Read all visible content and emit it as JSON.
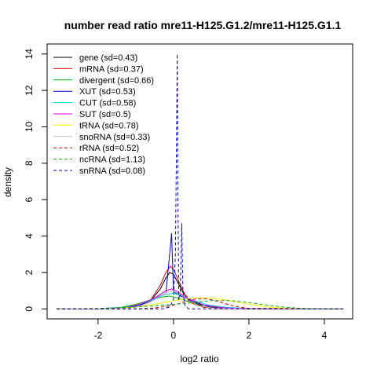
{
  "chart_data": {
    "type": "line",
    "title": "number read ratio mre11-H125.G1.2/mre11-H125.G1.1",
    "xlabel": "log2 ratio",
    "ylabel": "density",
    "xlim": [
      -3.2,
      4.6
    ],
    "ylim": [
      0,
      14
    ],
    "x_ticks": [
      -2,
      0,
      2,
      4
    ],
    "y_ticks": [
      0,
      2,
      4,
      6,
      8,
      10,
      12,
      14
    ],
    "grid": false,
    "legend_position": "top-left",
    "series": [
      {
        "name": "gene (sd=0.43)",
        "color": "#000000",
        "dash": "solid",
        "points": [
          [
            -3.1,
            0
          ],
          [
            -2,
            0
          ],
          [
            -1.5,
            0.02
          ],
          [
            -1.0,
            0.1
          ],
          [
            -0.6,
            0.45
          ],
          [
            -0.35,
            1.1
          ],
          [
            -0.2,
            1.7
          ],
          [
            -0.1,
            2.0
          ],
          [
            0.0,
            1.9
          ],
          [
            0.1,
            1.5
          ],
          [
            0.25,
            0.9
          ],
          [
            0.45,
            0.4
          ],
          [
            0.8,
            0.12
          ],
          [
            1.2,
            0.04
          ],
          [
            2,
            0
          ],
          [
            4.5,
            0
          ]
        ]
      },
      {
        "name": "mRNA (sd=0.37)",
        "color": "#e00000",
        "dash": "solid",
        "points": [
          [
            -3.1,
            0
          ],
          [
            -2,
            0
          ],
          [
            -1.5,
            0.02
          ],
          [
            -1.0,
            0.1
          ],
          [
            -0.6,
            0.5
          ],
          [
            -0.35,
            1.3
          ],
          [
            -0.2,
            2.0
          ],
          [
            -0.08,
            2.35
          ],
          [
            0.02,
            2.1
          ],
          [
            0.12,
            1.6
          ],
          [
            0.3,
            0.8
          ],
          [
            0.5,
            0.3
          ],
          [
            0.8,
            0.08
          ],
          [
            1.2,
            0.02
          ],
          [
            2,
            0
          ],
          [
            4.5,
            0
          ]
        ]
      },
      {
        "name": "divergent (sd=0.66)",
        "color": "#00b000",
        "dash": "solid",
        "points": [
          [
            -3.1,
            0
          ],
          [
            -2,
            0.01
          ],
          [
            -1.4,
            0.08
          ],
          [
            -1.0,
            0.25
          ],
          [
            -0.6,
            0.5
          ],
          [
            -0.3,
            0.65
          ],
          [
            -0.1,
            0.7
          ],
          [
            0.1,
            0.6
          ],
          [
            0.4,
            0.4
          ],
          [
            0.8,
            0.2
          ],
          [
            1.3,
            0.08
          ],
          [
            2,
            0.02
          ],
          [
            4.5,
            0
          ]
        ]
      },
      {
        "name": "XUT (sd=0.53)",
        "color": "#0000e0",
        "dash": "solid",
        "points": [
          [
            -3.1,
            0
          ],
          [
            -2,
            0
          ],
          [
            -1.3,
            0.05
          ],
          [
            -0.9,
            0.2
          ],
          [
            -0.5,
            0.55
          ],
          [
            -0.2,
            0.9
          ],
          [
            -0.05,
            4.15
          ],
          [
            0.0,
            0.95
          ],
          [
            0.2,
            0.7
          ],
          [
            0.5,
            0.4
          ],
          [
            0.9,
            0.15
          ],
          [
            1.5,
            0.04
          ],
          [
            2.2,
            0
          ],
          [
            4.5,
            0
          ]
        ]
      },
      {
        "name": "CUT (sd=0.58)",
        "color": "#00d8d8",
        "dash": "solid",
        "points": [
          [
            -3.1,
            0
          ],
          [
            -2,
            0.01
          ],
          [
            -1.3,
            0.08
          ],
          [
            -0.9,
            0.25
          ],
          [
            -0.5,
            0.55
          ],
          [
            -0.2,
            0.8
          ],
          [
            0.0,
            0.85
          ],
          [
            0.2,
            0.75
          ],
          [
            0.5,
            0.5
          ],
          [
            0.9,
            0.22
          ],
          [
            1.4,
            0.08
          ],
          [
            2,
            0.02
          ],
          [
            4.5,
            0
          ]
        ]
      },
      {
        "name": "SUT (sd=0.5)",
        "color": "#e000e0",
        "dash": "solid",
        "points": [
          [
            -3.1,
            0
          ],
          [
            -2,
            0
          ],
          [
            -1.3,
            0.06
          ],
          [
            -0.9,
            0.25
          ],
          [
            -0.5,
            0.6
          ],
          [
            -0.2,
            1.0
          ],
          [
            -0.05,
            1.1
          ],
          [
            0.1,
            0.95
          ],
          [
            0.4,
            0.55
          ],
          [
            0.8,
            0.22
          ],
          [
            1.3,
            0.06
          ],
          [
            2,
            0.01
          ],
          [
            4.5,
            0
          ]
        ]
      },
      {
        "name": "tRNA (sd=0.78)",
        "color": "#f2f200",
        "dash": "solid",
        "points": [
          [
            -3.1,
            0
          ],
          [
            -1.5,
            0.02
          ],
          [
            -1.0,
            0.1
          ],
          [
            -0.5,
            0.25
          ],
          [
            0.0,
            0.45
          ],
          [
            0.5,
            0.6
          ],
          [
            1.0,
            0.6
          ],
          [
            1.5,
            0.45
          ],
          [
            2.0,
            0.25
          ],
          [
            2.5,
            0.1
          ],
          [
            3.0,
            0.03
          ],
          [
            4.5,
            0
          ]
        ]
      },
      {
        "name": "snoRNA (sd=0.33)",
        "color": "#bbbbbb",
        "dash": "solid",
        "points": [
          [
            -3.1,
            0
          ],
          [
            -2,
            0
          ],
          [
            -1.2,
            0.04
          ],
          [
            -0.8,
            0.2
          ],
          [
            -0.5,
            0.5
          ],
          [
            -0.25,
            0.85
          ],
          [
            -0.05,
            1.0
          ],
          [
            0.15,
            0.85
          ],
          [
            0.4,
            0.45
          ],
          [
            0.7,
            0.15
          ],
          [
            1.1,
            0.03
          ],
          [
            2,
            0
          ],
          [
            4.5,
            0
          ]
        ]
      },
      {
        "name": "rRNA (sd=0.52)",
        "color": "#e00000",
        "dash": "dashed",
        "points": [
          [
            -3.1,
            0
          ],
          [
            -1.0,
            0
          ],
          [
            -0.5,
            0.05
          ],
          [
            0.0,
            0.2
          ],
          [
            0.3,
            0.4
          ],
          [
            0.6,
            0.55
          ],
          [
            0.9,
            0.55
          ],
          [
            1.2,
            0.4
          ],
          [
            1.6,
            0.15
          ],
          [
            2.0,
            0.03
          ],
          [
            4.5,
            0
          ]
        ]
      },
      {
        "name": "ncRNA (sd=1.13)",
        "color": "#00b000",
        "dash": "dashed",
        "points": [
          [
            -3.1,
            0
          ],
          [
            -2,
            0.02
          ],
          [
            -1.0,
            0.1
          ],
          [
            0.0,
            0.25
          ],
          [
            0.5,
            0.35
          ],
          [
            1.0,
            0.45
          ],
          [
            1.5,
            0.45
          ],
          [
            2.0,
            0.35
          ],
          [
            2.5,
            0.2
          ],
          [
            3.0,
            0.08
          ],
          [
            3.5,
            0.02
          ],
          [
            4.5,
            0
          ]
        ]
      },
      {
        "name": "snRNA (sd=0.08)",
        "color": "#0000b0",
        "dash": "dashed",
        "points": [
          [
            -3.1,
            0
          ],
          [
            -0.3,
            0
          ],
          [
            -0.1,
            0.1
          ],
          [
            0.0,
            0.5
          ],
          [
            0.05,
            3.0
          ],
          [
            0.08,
            9.0
          ],
          [
            0.1,
            14.0
          ],
          [
            0.12,
            6.0
          ],
          [
            0.14,
            0.5
          ],
          [
            0.18,
            0.8
          ],
          [
            0.22,
            4.7
          ],
          [
            0.25,
            1.0
          ],
          [
            0.3,
            0.2
          ],
          [
            0.4,
            0
          ],
          [
            4.5,
            0
          ]
        ]
      }
    ]
  }
}
